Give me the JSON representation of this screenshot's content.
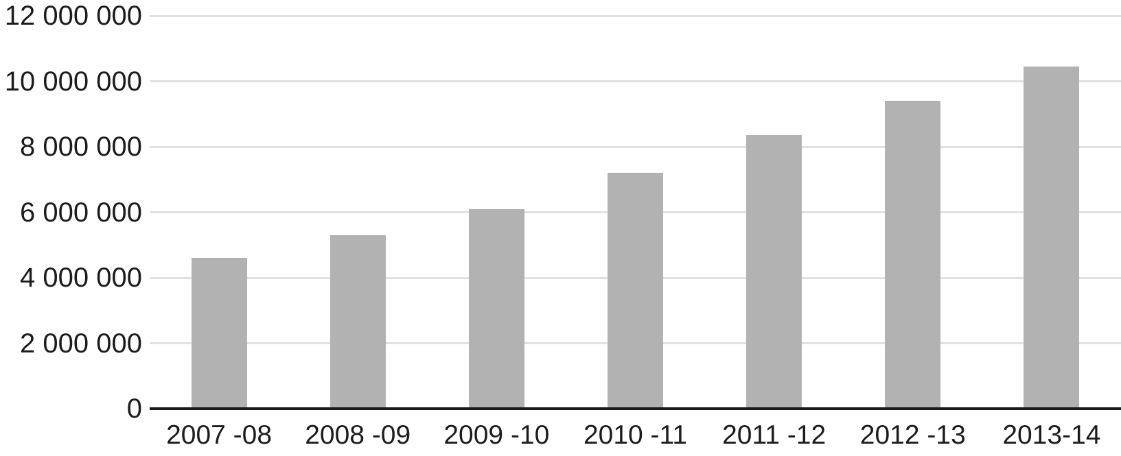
{
  "chart_data": {
    "type": "bar",
    "title": "",
    "xlabel": "",
    "ylabel": "",
    "legend_position": "none",
    "grid": "horizontal",
    "categories": [
      "2007 -08",
      "2008 -09",
      "2009 -10",
      "2010 -11",
      "2011 -12",
      "2012 -13",
      "2013-14"
    ],
    "values": [
      4600000,
      5300000,
      6100000,
      7200000,
      8350000,
      9400000,
      10450000
    ],
    "ylim": [
      0,
      12000000
    ],
    "yticks": [
      {
        "value": 0,
        "label": "0"
      },
      {
        "value": 2000000,
        "label": "2 000 000"
      },
      {
        "value": 4000000,
        "label": "4 000 000"
      },
      {
        "value": 6000000,
        "label": "6 000 000"
      },
      {
        "value": 8000000,
        "label": "8 000 000"
      },
      {
        "value": 10000000,
        "label": "10 000 000"
      },
      {
        "value": 12000000,
        "label": "12 000 000"
      }
    ],
    "colors": {
      "bar": "#b2b2b2",
      "gridline": "#e1e1e1",
      "axis": "#1a1a1a",
      "text": "#1c1c1c",
      "background": "#ffffff"
    }
  }
}
